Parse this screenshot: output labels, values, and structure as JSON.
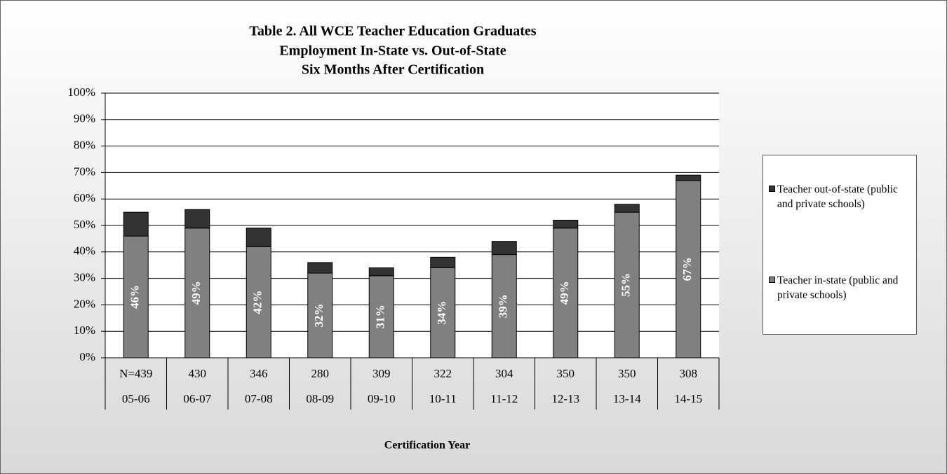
{
  "chart_data": {
    "type": "stacked_bar",
    "title": [
      "Table 2.  All WCE Teacher Education Graduates",
      "Employment In-State vs. Out-of-State",
      "Six Months After Certification"
    ],
    "x_label": "Certification  Year",
    "categories": [
      "05-06",
      "06-07",
      "07-08",
      "08-09",
      "09-10",
      "10-11",
      "11-12",
      "12-13",
      "13-14",
      "14-15"
    ],
    "category_counts": [
      "N=439",
      "430",
      "346",
      "280",
      "309",
      "322",
      "304",
      "350",
      "350",
      "308"
    ],
    "series": [
      {
        "name": "Teacher in-state (public and private schools)",
        "color": "#808080",
        "values": [
          46,
          49,
          42,
          32,
          31,
          34,
          39,
          49,
          55,
          67
        ],
        "value_labels": [
          "46%",
          "49%",
          "42%",
          "32%",
          "31%",
          "34%",
          "39%",
          "49%",
          "55%",
          "67%"
        ]
      },
      {
        "name": "Teacher out-of-state (public and private schools)",
        "color": "#333333",
        "values": [
          9,
          7,
          7,
          4,
          3,
          4,
          5,
          3,
          3,
          2
        ]
      }
    ],
    "ylim": [
      0,
      100
    ],
    "yticks": [
      {
        "value": 0,
        "label": "0%"
      },
      {
        "value": 10,
        "label": "10%"
      },
      {
        "value": 20,
        "label": "20%"
      },
      {
        "value": 30,
        "label": "30%"
      },
      {
        "value": 40,
        "label": "40%"
      },
      {
        "value": 50,
        "label": "50%"
      },
      {
        "value": 60,
        "label": "60%"
      },
      {
        "value": 70,
        "label": "70%"
      },
      {
        "value": 80,
        "label": "80%"
      },
      {
        "value": 90,
        "label": "90%"
      },
      {
        "value": 100,
        "label": "100%"
      }
    ],
    "grid": true,
    "legend": "right"
  }
}
